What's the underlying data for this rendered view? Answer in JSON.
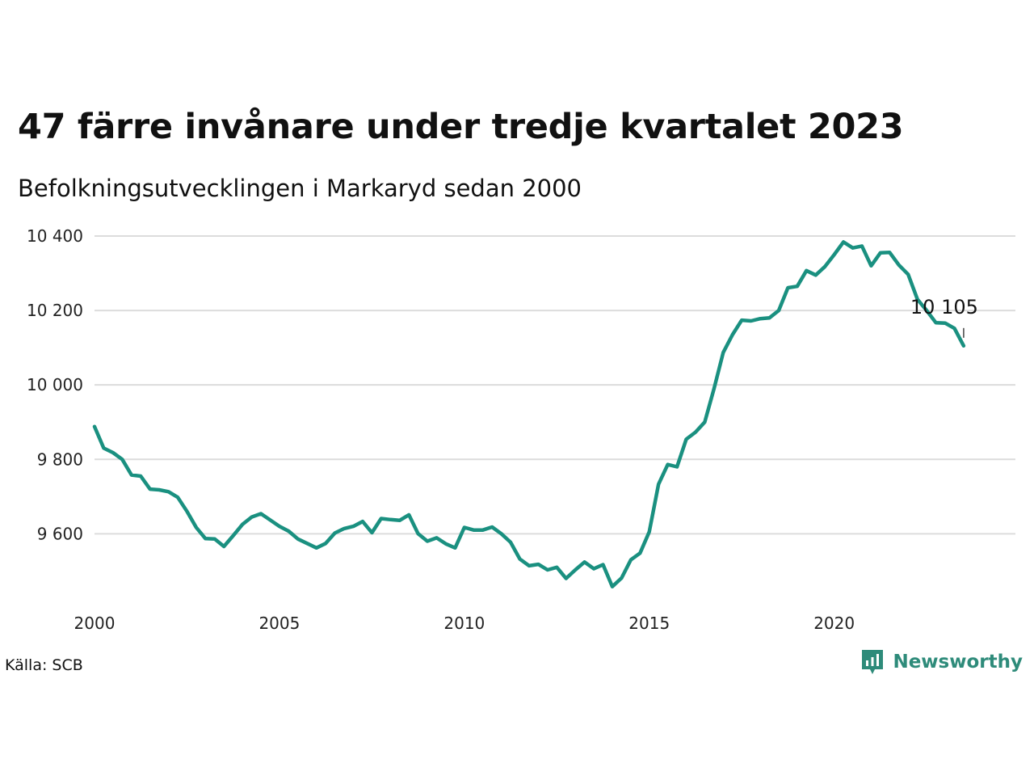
{
  "title": "47 färre invånare under tredje kvartalet 2023",
  "subtitle": "Befolkningsutvecklingen i Markaryd sedan 2000",
  "source": "Källa: SCB",
  "brand": {
    "name": "Newsworthy",
    "icon": "newsworthy-logo-icon",
    "color": "#2e8b7a"
  },
  "chart_data": {
    "type": "line",
    "title": "47 färre invånare under tredje kvartalet 2023",
    "subtitle": "Befolkningsutvecklingen i Markaryd sedan 2000",
    "xlabel": "",
    "ylabel": "",
    "xlim": [
      2000,
      2024.9
    ],
    "ylim": [
      9440,
      10400
    ],
    "grid": "horizontal",
    "line_color": "#1a9080",
    "x_ticks": [
      2000,
      2005,
      2010,
      2015,
      2020
    ],
    "x_tick_labels": [
      "2000",
      "2005",
      "2010",
      "2015",
      "2020"
    ],
    "y_ticks": [
      9600,
      9800,
      10000,
      10200,
      10400
    ],
    "y_tick_labels": [
      "9 600",
      "9 800",
      "10 000",
      "10 200",
      "10 400"
    ],
    "end_label": "10 105",
    "series": [
      {
        "x": [
          2000.0,
          2000.25,
          2000.5,
          2000.75,
          2001.0,
          2001.25,
          2001.5,
          2001.75,
          2002.0,
          2002.25,
          2002.5,
          2002.75,
          2003.0,
          2003.25,
          2003.5,
          2003.75,
          2004.0,
          2004.25,
          2004.5,
          2004.75,
          2005.0,
          2005.25,
          2005.5,
          2005.75,
          2006.0,
          2006.25,
          2006.5,
          2006.75,
          2007.0,
          2007.25,
          2007.5,
          2007.75,
          2008.0,
          2008.25,
          2008.5,
          2008.75,
          2009.0,
          2009.25,
          2009.5,
          2009.75,
          2010.0,
          2010.25,
          2010.5,
          2010.75,
          2011.0,
          2011.25,
          2011.5,
          2011.75,
          2012.0,
          2012.25,
          2012.5,
          2012.75,
          2013.0,
          2013.25,
          2013.5,
          2013.75,
          2014.0,
          2014.25,
          2014.5,
          2014.75,
          2015.0,
          2015.25,
          2015.5,
          2015.75,
          2016.0,
          2016.25,
          2016.5,
          2016.75,
          2017.0,
          2017.25,
          2017.5,
          2017.75,
          2018.0,
          2018.25,
          2018.5,
          2018.75,
          2019.0,
          2019.25,
          2019.5,
          2019.75,
          2020.0,
          2020.25,
          2020.5,
          2020.75,
          2021.0,
          2021.25,
          2021.5,
          2021.75,
          2022.0,
          2022.25,
          2022.5,
          2022.75,
          2023.0,
          2023.25,
          2023.5
        ],
        "y": [
          9888,
          9830,
          9818,
          9800,
          9758,
          9755,
          9720,
          9718,
          9713,
          9698,
          9660,
          9617,
          9587,
          9586,
          9566,
          9595,
          9625,
          9645,
          9654,
          9637,
          9620,
          9607,
          9586,
          9574,
          9562,
          9574,
          9602,
          9614,
          9620,
          9633,
          9603,
          9641,
          9638,
          9636,
          9651,
          9600,
          9580,
          9589,
          9573,
          9562,
          9617,
          9610,
          9610,
          9618,
          9600,
          9577,
          9532,
          9514,
          9518,
          9503,
          9510,
          9480,
          9503,
          9524,
          9506,
          9517,
          9458,
          9481,
          9530,
          9548,
          9605,
          9733,
          9786,
          9780,
          9854,
          9873,
          9900,
          9990,
          10087,
          10135,
          10174,
          10172,
          10178,
          10180,
          10200,
          10261,
          10265,
          10307,
          10295,
          10318,
          10350,
          10384,
          10368,
          10373,
          10320,
          10355,
          10356,
          10322,
          10297,
          10230,
          10200,
          10167,
          10166,
          10152,
          10105
        ]
      }
    ]
  }
}
